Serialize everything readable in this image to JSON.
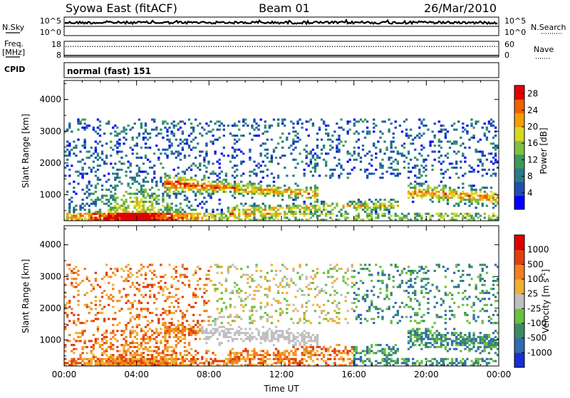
{
  "header": {
    "station": "Syowa East (fitACF)",
    "beam": "Beam 01",
    "date": "26/Mar/2010"
  },
  "nsky_panel": {
    "left_label": "N.Sky",
    "right_label": "N.Search",
    "left_ticks": [
      "10^5",
      "10^0"
    ],
    "right_ticks": [
      "10^5",
      "10^0"
    ]
  },
  "freq_panel": {
    "left_label_1": "Freq.",
    "left_label_2": "[MHz]",
    "right_label": "Nave",
    "left_ticks": [
      "18",
      "8"
    ],
    "right_ticks": [
      "60",
      "0"
    ],
    "freq_value_mhz": 8.1,
    "nave_value": 40
  },
  "cpid_panel": {
    "label": "CPID",
    "value": "normal (fast) 151"
  },
  "colors": {
    "power_scale": [
      "#0000ff",
      "#1f4fb0",
      "#2a7a8a",
      "#3d9a5a",
      "#7fc040",
      "#d8d820",
      "#f0a000",
      "#f06000",
      "#e00000"
    ],
    "velocity_scale": [
      "#1a2fd0",
      "#2f6cb0",
      "#3c8a6a",
      "#6cc040",
      "#c0c0c0",
      "#f0b030",
      "#f08020",
      "#e04010",
      "#e00000"
    ]
  },
  "chart_data": [
    {
      "type": "heatmap",
      "name": "power",
      "ylabel": "Slant Range [km]",
      "yticks": [
        1000,
        2000,
        3000,
        4000
      ],
      "ylim": [
        180,
        4600
      ],
      "xlim_hours": [
        0,
        24
      ],
      "colorbar": {
        "label": "Power [dB]",
        "ticks": [
          4,
          8,
          12,
          16,
          20,
          24,
          28
        ],
        "range": [
          0,
          30
        ]
      }
    },
    {
      "type": "heatmap",
      "name": "velocity",
      "ylabel": "Slant Range [km]",
      "yticks": [
        1000,
        2000,
        3000,
        4000
      ],
      "ylim": [
        180,
        4600
      ],
      "xlim_hours": [
        0,
        24
      ],
      "xlabel": "Time UT",
      "xticks": [
        "00:00",
        "04:00",
        "08:00",
        "12:00",
        "16:00",
        "20:00",
        "00:00"
      ],
      "colorbar": {
        "label": "Velocity [m s^-1]",
        "ticks": [
          "1000",
          "500",
          "100",
          "25",
          "-25",
          "-100",
          "-500",
          "-1000"
        ]
      }
    }
  ]
}
